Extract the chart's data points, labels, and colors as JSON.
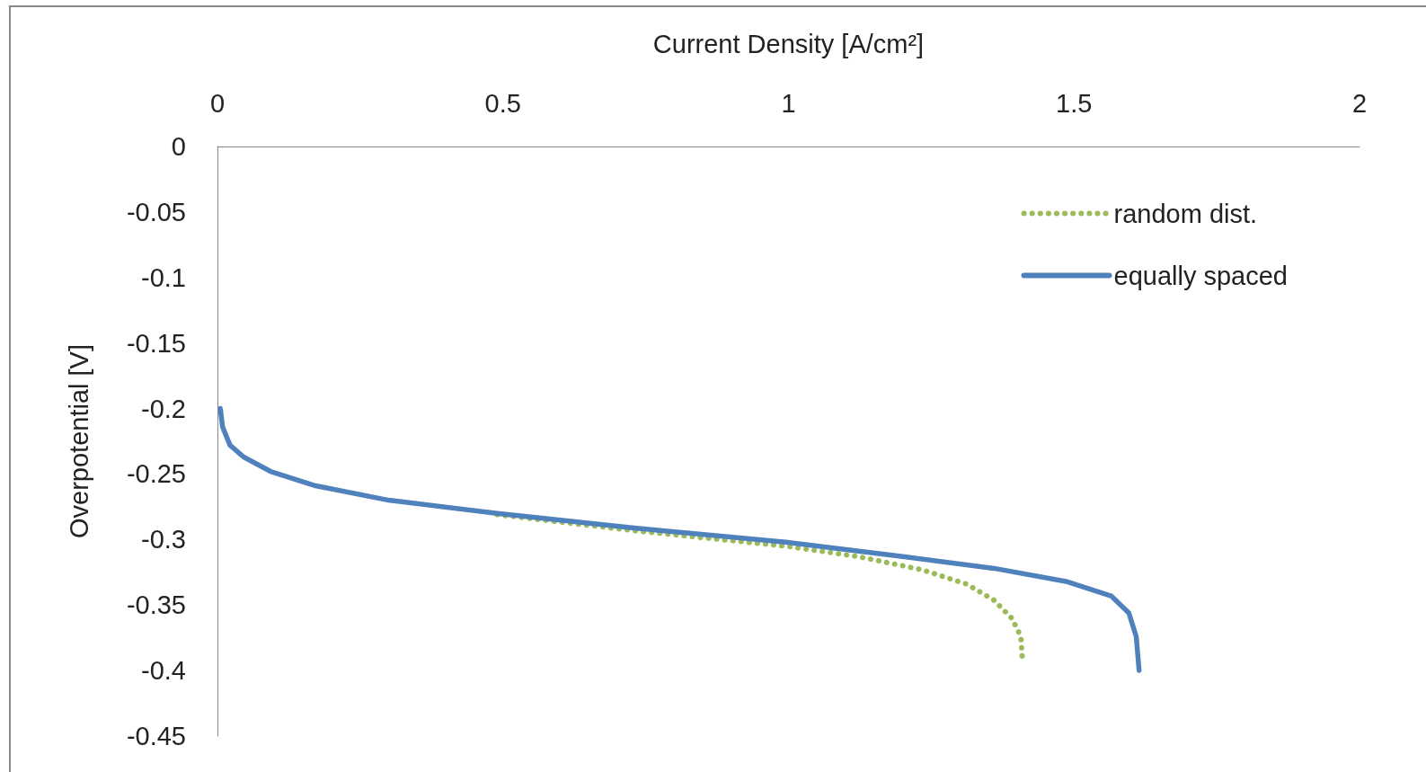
{
  "chart_data": {
    "type": "line",
    "xlabel": "Current Density [A/cm²]",
    "ylabel": "Overpotential [V]",
    "xlim": [
      0,
      2
    ],
    "xticks": [
      0,
      0.5,
      1,
      1.5,
      2
    ],
    "ylim": [
      -0.45,
      0
    ],
    "yticks": [
      0,
      -0.05,
      -0.1,
      -0.15,
      -0.2,
      -0.25,
      -0.3,
      -0.35,
      -0.4,
      -0.45
    ],
    "grid": false,
    "legend": "top right",
    "marker": "none",
    "series": [
      {
        "name": "random dist.",
        "color": "#9bbb59",
        "line_style": "dotted",
        "x": [
          0.49,
          0.726,
          0.995,
          1.122,
          1.233,
          1.312,
          1.359,
          1.391,
          1.407,
          1.41
        ],
        "values": [
          -0.281,
          -0.293,
          -0.305,
          -0.313,
          -0.323,
          -0.334,
          -0.346,
          -0.36,
          -0.374,
          -0.395
        ]
      },
      {
        "name": "equally spaced",
        "color": "#4f81bd",
        "line_style": "solid",
        "x": [
          0.005,
          0.009,
          0.022,
          0.046,
          0.093,
          0.172,
          0.3,
          0.49,
          0.726,
          0.995,
          1.2,
          1.36,
          1.486,
          1.565,
          1.596,
          1.609,
          1.614
        ],
        "values": [
          -0.2,
          -0.214,
          -0.228,
          -0.237,
          -0.248,
          -0.259,
          -0.27,
          -0.28,
          -0.291,
          -0.302,
          -0.313,
          -0.322,
          -0.332,
          -0.343,
          -0.356,
          -0.374,
          -0.4
        ]
      }
    ]
  }
}
